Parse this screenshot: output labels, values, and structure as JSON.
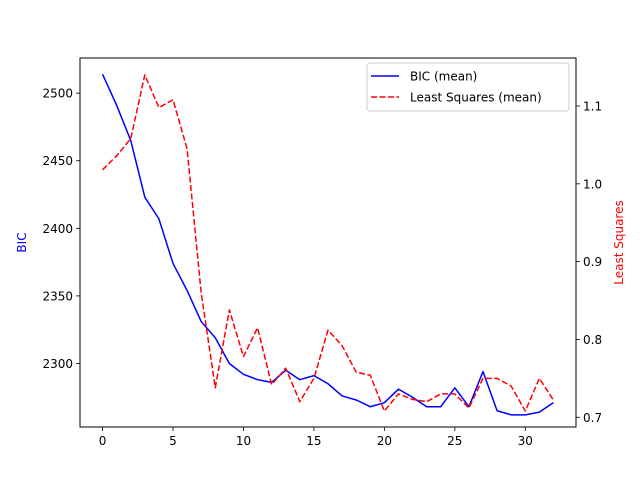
{
  "chart_data": {
    "type": "line",
    "x": [
      0,
      1,
      2,
      3,
      4,
      5,
      6,
      7,
      8,
      9,
      10,
      11,
      12,
      13,
      14,
      15,
      16,
      17,
      18,
      19,
      20,
      21,
      22,
      23,
      24,
      25,
      26,
      27,
      28,
      29,
      30,
      31,
      32
    ],
    "series": [
      {
        "name": "BIC (mean)",
        "axis": "left",
        "color": "#0000ff",
        "style": "solid",
        "values": [
          2514,
          2491,
          2465,
          2423,
          2407,
          2374,
          2354,
          2331,
          2319,
          2300,
          2292,
          2288,
          2286,
          2295,
          2288,
          2291,
          2285,
          2276,
          2273,
          2268,
          2271,
          2281,
          2275,
          2268,
          2268,
          2282,
          2268,
          2294,
          2265,
          2262,
          2262,
          2264,
          2271
        ]
      },
      {
        "name": "Least Squares (mean)",
        "axis": "right",
        "color": "#ff0000",
        "style": "dashed",
        "values": [
          1.018,
          1.036,
          1.058,
          1.14,
          1.098,
          1.108,
          1.045,
          0.86,
          0.738,
          0.838,
          0.778,
          0.815,
          0.742,
          0.763,
          0.72,
          0.75,
          0.812,
          0.792,
          0.758,
          0.754,
          0.708,
          0.73,
          0.723,
          0.72,
          0.73,
          0.73,
          0.712,
          0.75,
          0.75,
          0.74,
          0.708,
          0.75,
          0.722
        ]
      }
    ],
    "xlim": [
      -1.6,
      33.6
    ],
    "ylim_left": [
      2253,
      2526
    ],
    "ylim_right": [
      0.6875,
      1.1617
    ],
    "xticks": [
      0,
      5,
      10,
      15,
      20,
      25,
      30
    ],
    "yticks_left": [
      2300,
      2350,
      2400,
      2450,
      2500
    ],
    "yticks_right": [
      0.7,
      0.8,
      0.9,
      1.0,
      1.1
    ],
    "xtick_labels": [
      "0",
      "5",
      "10",
      "15",
      "20",
      "25",
      "30"
    ],
    "ytick_labels_left": [
      "2300",
      "2350",
      "2400",
      "2450",
      "2500"
    ],
    "ytick_labels_right": [
      "0.7",
      "0.8",
      "0.9",
      "1.0",
      "1.1"
    ],
    "ylabel_left": "BIC",
    "ylabel_right": "Least Squares",
    "ylabel_left_color": "#0000ff",
    "ylabel_right_color": "#ff0000",
    "legend_position": "upper-right",
    "grid": false
  }
}
